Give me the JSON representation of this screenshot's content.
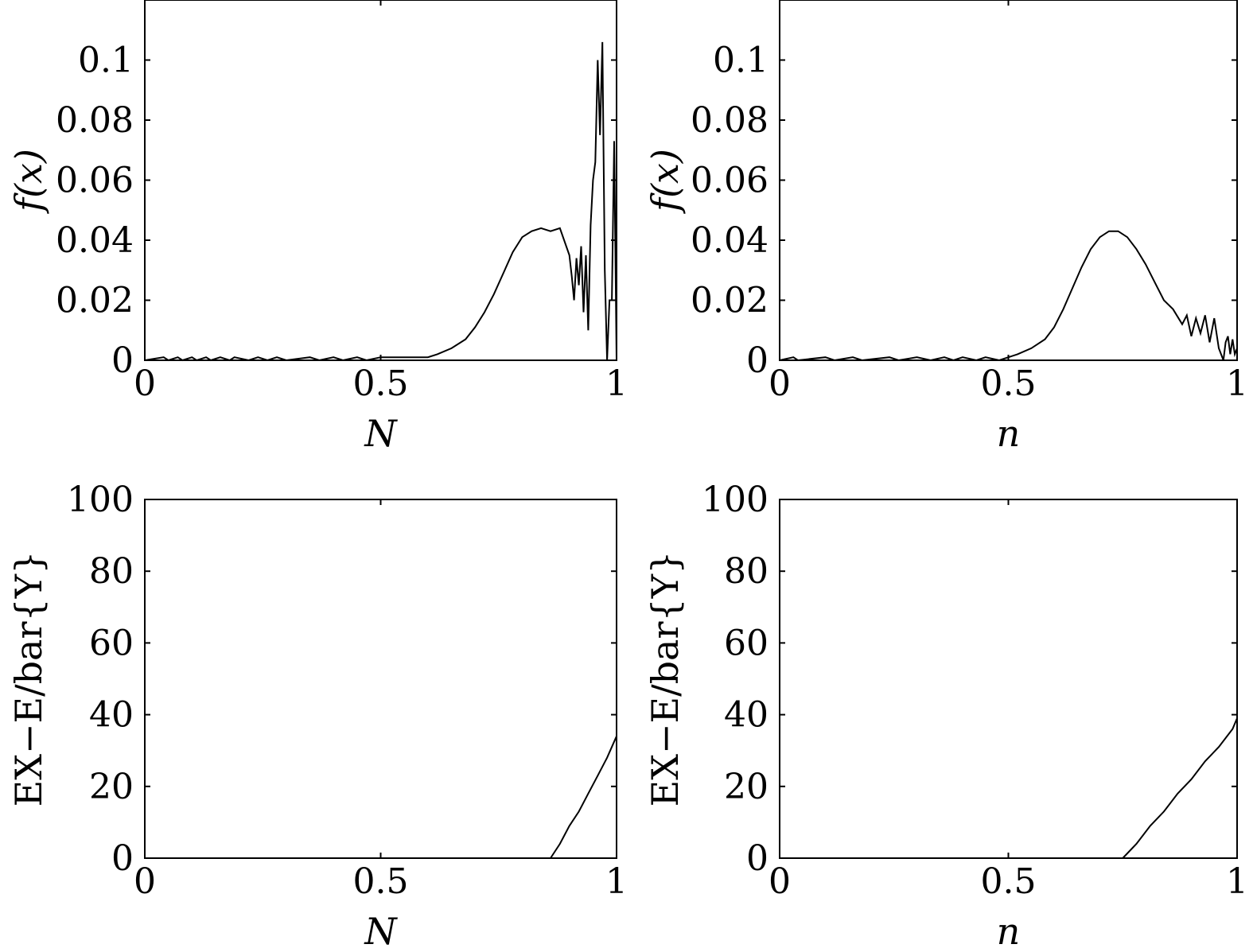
{
  "chart_data": [
    {
      "type": "line",
      "panel": "top-left",
      "xlabel": "N",
      "ylabel": "f(x)",
      "xlim": [
        0,
        1
      ],
      "ylim": [
        0,
        0.12
      ],
      "xticks": [
        "0",
        "0.5",
        "1"
      ],
      "yticks": [
        "0",
        "0.02",
        "0.04",
        "0.06",
        "0.08",
        "0.1"
      ],
      "series": [
        {
          "x": [
            0.0,
            0.04,
            0.05,
            0.07,
            0.08,
            0.1,
            0.11,
            0.13,
            0.14,
            0.16,
            0.18,
            0.19,
            0.22,
            0.24,
            0.26,
            0.28,
            0.3,
            0.35,
            0.37,
            0.4,
            0.42,
            0.45,
            0.47,
            0.5,
            0.55,
            0.6,
            0.62,
            0.65,
            0.68,
            0.7,
            0.72,
            0.74,
            0.76,
            0.78,
            0.8,
            0.82,
            0.84,
            0.86,
            0.88,
            0.9,
            0.905,
            0.91,
            0.915,
            0.92,
            0.925,
            0.93,
            0.935,
            0.94,
            0.945,
            0.95,
            0.955,
            0.96,
            0.965,
            0.97,
            0.975,
            0.98,
            0.985,
            0.99,
            0.995,
            1.0
          ],
          "y": [
            0,
            0.001,
            0,
            0.001,
            0,
            0.001,
            0,
            0.001,
            0,
            0.001,
            0,
            0.001,
            0,
            0.001,
            0,
            0.001,
            0,
            0.001,
            0,
            0.001,
            0,
            0.001,
            0,
            0.001,
            0.001,
            0.001,
            0.002,
            0.004,
            0.007,
            0.011,
            0.016,
            0.022,
            0.029,
            0.036,
            0.041,
            0.043,
            0.044,
            0.043,
            0.044,
            0.035,
            0.028,
            0.02,
            0.034,
            0.025,
            0.038,
            0.016,
            0.035,
            0.01,
            0.045,
            0.06,
            0.066,
            0.1,
            0.075,
            0.106,
            0.03,
            0,
            0.02,
            0.02,
            0.073,
            0.0
          ]
        }
      ]
    },
    {
      "type": "line",
      "panel": "top-right",
      "xlabel": "n",
      "ylabel": "f(x)",
      "xlim": [
        0,
        1
      ],
      "ylim": [
        0,
        0.12
      ],
      "xticks": [
        "0",
        "0.5",
        "1"
      ],
      "yticks": [
        "0",
        "0.02",
        "0.04",
        "0.06",
        "0.08",
        "0.1"
      ],
      "series": [
        {
          "x": [
            0.0,
            0.03,
            0.04,
            0.1,
            0.12,
            0.16,
            0.18,
            0.24,
            0.26,
            0.3,
            0.33,
            0.36,
            0.38,
            0.4,
            0.43,
            0.45,
            0.48,
            0.5,
            0.52,
            0.55,
            0.58,
            0.6,
            0.62,
            0.64,
            0.66,
            0.68,
            0.7,
            0.72,
            0.74,
            0.76,
            0.78,
            0.8,
            0.82,
            0.84,
            0.86,
            0.88,
            0.89,
            0.9,
            0.91,
            0.92,
            0.93,
            0.94,
            0.95,
            0.96,
            0.97,
            0.975,
            0.98,
            0.985,
            0.99,
            0.995,
            1.0
          ],
          "y": [
            0,
            0.001,
            0,
            0.001,
            0,
            0.001,
            0,
            0.001,
            0,
            0.001,
            0,
            0.001,
            0,
            0.001,
            0,
            0.001,
            0,
            0.001,
            0.002,
            0.004,
            0.007,
            0.011,
            0.017,
            0.024,
            0.031,
            0.037,
            0.041,
            0.043,
            0.043,
            0.041,
            0.037,
            0.032,
            0.026,
            0.02,
            0.017,
            0.012,
            0.015,
            0.008,
            0.014,
            0.009,
            0.015,
            0.006,
            0.014,
            0.004,
            0.0,
            0.006,
            0.008,
            0.002,
            0.007,
            0.002,
            0.004
          ]
        }
      ]
    },
    {
      "type": "line",
      "panel": "bottom-left",
      "xlabel": "N",
      "ylabel": "EX−E/bar{Y}",
      "xlim": [
        0,
        1
      ],
      "ylim": [
        0,
        100
      ],
      "xticks": [
        "0",
        "0.5",
        "1"
      ],
      "yticks": [
        "0",
        "20",
        "40",
        "60",
        "80",
        "100"
      ],
      "series": [
        {
          "x": [
            0.86,
            0.88,
            0.9,
            0.92,
            0.94,
            0.96,
            0.98,
            1.0
          ],
          "y": [
            0,
            4,
            9,
            13,
            18,
            23,
            28,
            34
          ]
        }
      ]
    },
    {
      "type": "line",
      "panel": "bottom-right",
      "xlabel": "n",
      "ylabel": "EX−E/bar{Y}",
      "xlim": [
        0,
        1
      ],
      "ylim": [
        0,
        100
      ],
      "xticks": [
        "0",
        "0.5",
        "1"
      ],
      "yticks": [
        "0",
        "20",
        "40",
        "60",
        "80",
        "100"
      ],
      "series": [
        {
          "x": [
            0.75,
            0.78,
            0.81,
            0.84,
            0.87,
            0.9,
            0.93,
            0.96,
            0.99,
            1.0
          ],
          "y": [
            0,
            4,
            9,
            13,
            18,
            22,
            27,
            31,
            36,
            39
          ]
        }
      ]
    }
  ]
}
